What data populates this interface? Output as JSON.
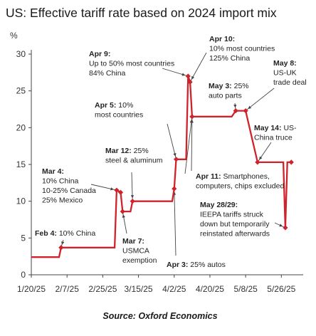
{
  "chart_data": {
    "type": "line",
    "title": "US: Effective tariff rate based on 2024 import mix",
    "ylabel": "%",
    "ylim": [
      0,
      30
    ],
    "yticks": [
      0,
      5,
      10,
      15,
      20,
      25,
      30
    ],
    "xlim": [
      "2025-01-20",
      "2025-06-06"
    ],
    "xticks": [
      "1/20/25",
      "2/7/25",
      "2/25/25",
      "3/15/25",
      "4/2/25",
      "4/20/25",
      "5/8/25",
      "5/26/25"
    ],
    "grid": false,
    "line_color": "#d0222a",
    "series": [
      {
        "points": [
          [
            "2025-01-20",
            2.4
          ],
          [
            "2025-02-03",
            2.4
          ],
          [
            "2025-02-04",
            3.7
          ],
          [
            "2025-03-03",
            3.7
          ],
          [
            "2025-03-04",
            11.5
          ],
          [
            "2025-03-06",
            11.2
          ],
          [
            "2025-03-07",
            8.6
          ],
          [
            "2025-03-11",
            8.6
          ],
          [
            "2025-03-12",
            10.0
          ],
          [
            "2025-04-01",
            10.0
          ],
          [
            "2025-04-02",
            11.7
          ],
          [
            "2025-04-03",
            15.7
          ],
          [
            "2025-04-08",
            15.7
          ],
          [
            "2025-04-09",
            27.0
          ],
          [
            "2025-04-10",
            26.2
          ],
          [
            "2025-04-11",
            21.5
          ],
          [
            "2025-05-01",
            21.5
          ],
          [
            "2025-05-03",
            22.3
          ],
          [
            "2025-05-08",
            22.3
          ],
          [
            "2025-05-14",
            15.3
          ],
          [
            "2025-05-27",
            15.3
          ],
          [
            "2025-05-28",
            6.4
          ],
          [
            "2025-05-29",
            15.3
          ],
          [
            "2025-05-31",
            15.3
          ]
        ],
        "markers": [
          [
            "2025-02-04",
            3.7
          ],
          [
            "2025-03-04",
            11.5
          ],
          [
            "2025-03-06",
            11.2
          ],
          [
            "2025-03-07",
            8.6
          ],
          [
            "2025-03-12",
            10.0
          ],
          [
            "2025-04-02",
            11.7
          ],
          [
            "2025-04-03",
            15.7
          ],
          [
            "2025-04-09",
            27.0
          ],
          [
            "2025-04-10",
            26.2
          ],
          [
            "2025-04-11",
            21.5
          ],
          [
            "2025-05-03",
            22.3
          ],
          [
            "2025-05-08",
            22.3
          ],
          [
            "2025-05-14",
            15.3
          ],
          [
            "2025-05-28",
            6.4
          ],
          [
            "2025-05-31",
            15.3
          ]
        ]
      }
    ],
    "annotations": [
      {
        "id": "feb4",
        "date": "2025-02-04",
        "value": 3.7,
        "head": "Feb 4:",
        "lines": [
          "Feb 4: 10% China"
        ]
      },
      {
        "id": "mar4",
        "date": "2025-03-04",
        "value": 11.5,
        "head": "Mar 4:",
        "lines": [
          "Mar 4:",
          "10% China",
          "10-25% Canada",
          "25% Mexico"
        ]
      },
      {
        "id": "mar7",
        "date": "2025-03-07",
        "value": 8.6,
        "head": "Mar 7:",
        "lines": [
          "Mar 7:",
          "USMCA",
          "exemption"
        ]
      },
      {
        "id": "mar12",
        "date": "2025-03-12",
        "value": 10.0,
        "head": "Mar 12:",
        "lines": [
          "Mar 12: 25%",
          "steel & aluminum"
        ]
      },
      {
        "id": "apr3",
        "date": "2025-04-02",
        "value": 11.7,
        "head": "Apr 3:",
        "lines": [
          "Apr 3: 25% autos"
        ]
      },
      {
        "id": "apr5",
        "date": "2025-04-03",
        "value": 15.7,
        "head": "Apr 5:",
        "lines": [
          "Apr 5: 10%",
          "most countries"
        ]
      },
      {
        "id": "apr9",
        "date": "2025-04-09",
        "value": 27.0,
        "head": "Apr 9:",
        "lines": [
          "Apr 9:",
          "Up to 50% most countries",
          "84% China"
        ]
      },
      {
        "id": "apr10",
        "date": "2025-04-10",
        "value": 26.2,
        "head": "Apr 10:",
        "lines": [
          "Apr 10:",
          "10% most countries",
          "125% China"
        ]
      },
      {
        "id": "apr11",
        "date": "2025-04-11",
        "value": 21.5,
        "head": "Apr 11:",
        "lines": [
          "Apr 11: Smartphones,",
          "computers, chips excluded"
        ]
      },
      {
        "id": "may3",
        "date": "2025-05-03",
        "value": 22.3,
        "head": "May 3:",
        "lines": [
          "May 3: 25%",
          "auto parts"
        ]
      },
      {
        "id": "may8",
        "date": "2025-05-08",
        "value": 22.3,
        "head": "May 8:",
        "lines": [
          "May 8:",
          "US-UK",
          "trade deal"
        ]
      },
      {
        "id": "may14",
        "date": "2025-05-14",
        "value": 15.3,
        "head": "May 14:",
        "lines": [
          "May 14: US-",
          "China truce"
        ]
      },
      {
        "id": "may28",
        "date": "2025-05-28",
        "value": 6.4,
        "head": "May 28/29:",
        "lines": [
          "May 28/29:",
          "IEEPA tariffs struck",
          "down but temporarily",
          "reinstated afterwards"
        ]
      }
    ],
    "source": "Source: Oxford Economics"
  }
}
